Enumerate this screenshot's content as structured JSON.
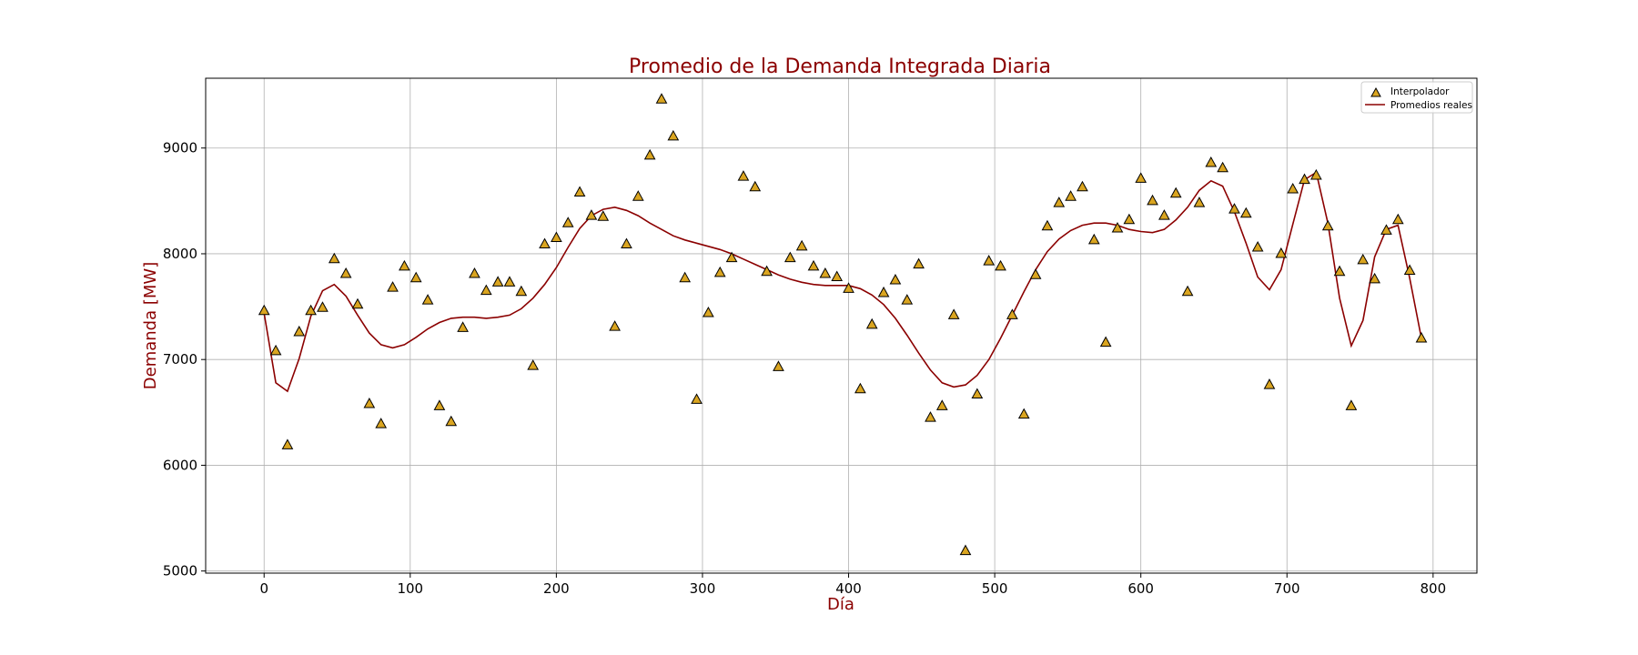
{
  "chart_data": {
    "type": "scatter",
    "title": "Promedio de la Demanda Integrada Diaria",
    "xlabel": "Día",
    "ylabel": "Demanda [MW]",
    "xlim": [
      -40,
      830
    ],
    "ylim": [
      4980,
      9660
    ],
    "xticks": [
      0,
      100,
      200,
      300,
      400,
      500,
      600,
      700,
      800
    ],
    "yticks": [
      5000,
      6000,
      7000,
      8000,
      9000
    ],
    "grid": true,
    "legend_position": "top-right",
    "colors": {
      "title": "#8b0000",
      "labels": "#8b0000",
      "marker_fill": "#daa520",
      "marker_edge": "#000000",
      "line": "#8b0000",
      "grid": "#b0b0b0"
    },
    "series": [
      {
        "name": "Interpolador",
        "kind": "scatter",
        "marker": "triangle",
        "x": [
          0,
          8,
          16,
          24,
          32,
          40,
          48,
          56,
          64,
          72,
          80,
          88,
          96,
          104,
          112,
          120,
          128,
          136,
          144,
          152,
          160,
          168,
          176,
          184,
          192,
          200,
          208,
          216,
          224,
          232,
          240,
          248,
          256,
          264,
          272,
          280,
          288,
          296,
          304,
          312,
          320,
          328,
          336,
          344,
          352,
          360,
          368,
          376,
          384,
          392,
          400,
          408,
          416,
          424,
          432,
          440,
          448,
          456,
          464,
          472,
          480,
          488,
          496,
          504,
          512,
          520,
          528,
          536,
          544,
          552,
          560,
          568,
          576,
          584,
          592,
          600,
          608,
          616,
          624,
          632,
          640,
          648,
          656,
          664,
          672,
          680,
          688,
          696,
          704,
          712,
          720,
          728,
          736,
          744,
          752,
          760,
          768,
          776,
          784,
          792
        ],
        "y": [
          7460,
          7080,
          6190,
          7260,
          7460,
          7490,
          7950,
          7810,
          7520,
          6580,
          6390,
          7680,
          7880,
          7770,
          7560,
          6560,
          6410,
          7300,
          7810,
          7650,
          7730,
          7730,
          7640,
          6940,
          8090,
          8150,
          8290,
          8580,
          8360,
          8350,
          7310,
          8090,
          8540,
          8930,
          9460,
          9110,
          7770,
          6620,
          7440,
          7820,
          7960,
          8730,
          8630,
          7830,
          6930,
          7960,
          8070,
          7880,
          7810,
          7780,
          7670,
          6720,
          7330,
          7630,
          7750,
          7560,
          7900,
          6450,
          6560,
          7420,
          5190,
          6670,
          7930,
          7880,
          7420,
          6480,
          7800,
          8260,
          8480,
          8540,
          8630,
          8130,
          7160,
          8240,
          8320,
          8710,
          8500,
          8360,
          8570,
          7640,
          8480,
          8860,
          8810,
          8420,
          8380,
          8060,
          6760,
          8000,
          8610,
          8700,
          8740,
          8260,
          7830,
          6560,
          7940,
          7760,
          8220,
          8320,
          7840,
          7200
        ]
      },
      {
        "name": "Promedios reales",
        "kind": "line",
        "x": [
          0,
          8,
          16,
          24,
          32,
          40,
          48,
          56,
          64,
          72,
          80,
          88,
          96,
          104,
          112,
          120,
          128,
          136,
          144,
          152,
          160,
          168,
          176,
          184,
          192,
          200,
          208,
          216,
          224,
          232,
          240,
          248,
          256,
          264,
          272,
          280,
          288,
          296,
          304,
          312,
          320,
          328,
          336,
          344,
          352,
          360,
          368,
          376,
          384,
          392,
          400,
          408,
          416,
          424,
          432,
          440,
          448,
          456,
          464,
          472,
          480,
          488,
          496,
          504,
          512,
          520,
          528,
          536,
          544,
          552,
          560,
          568,
          576,
          584,
          592,
          600,
          608,
          616,
          624,
          632,
          640,
          648,
          656,
          664,
          672,
          680,
          688,
          696,
          704,
          712,
          720,
          728,
          736,
          744,
          752,
          760,
          768,
          776,
          784,
          792
        ],
        "y": [
          7440,
          6780,
          6700,
          7010,
          7410,
          7650,
          7710,
          7600,
          7420,
          7250,
          7140,
          7110,
          7140,
          7210,
          7290,
          7350,
          7390,
          7400,
          7400,
          7390,
          7400,
          7420,
          7480,
          7580,
          7710,
          7870,
          8060,
          8240,
          8360,
          8420,
          8440,
          8410,
          8360,
          8290,
          8230,
          8170,
          8130,
          8100,
          8070,
          8040,
          8000,
          7950,
          7900,
          7850,
          7800,
          7760,
          7730,
          7710,
          7700,
          7700,
          7700,
          7670,
          7610,
          7520,
          7390,
          7230,
          7060,
          6900,
          6780,
          6740,
          6760,
          6850,
          7000,
          7200,
          7420,
          7640,
          7850,
          8020,
          8140,
          8220,
          8270,
          8290,
          8290,
          8270,
          8230,
          8210,
          8200,
          8230,
          8320,
          8440,
          8600,
          8690,
          8640,
          8400,
          8100,
          7780,
          7660,
          7850,
          8280,
          8700,
          8770,
          8290,
          7580,
          7130,
          7370,
          7970,
          8230,
          8270,
          7770,
          7200
        ]
      }
    ]
  }
}
